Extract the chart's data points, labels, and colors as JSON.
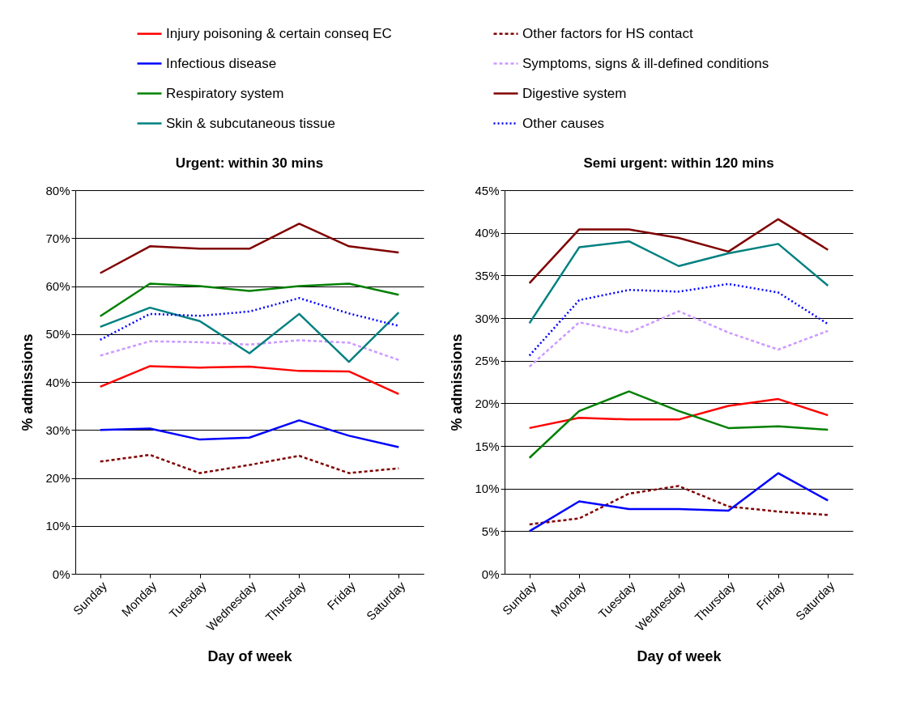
{
  "chart_data": [
    {
      "type": "line",
      "title": "Urgent: within 30 mins",
      "xlabel": "Day of week",
      "ylabel": "% admissions",
      "categories": [
        "Sunday",
        "Monday",
        "Tuesday",
        "Wednesday",
        "Thursday",
        "Friday",
        "Saturday"
      ],
      "ylim": [
        0,
        80
      ],
      "yticks": [
        {
          "value": 0,
          "label": "0%"
        },
        {
          "value": 10,
          "label": "10%"
        },
        {
          "value": 20,
          "label": "20%"
        },
        {
          "value": 30,
          "label": "30%"
        },
        {
          "value": 40,
          "label": "40%"
        },
        {
          "value": 50,
          "label": "50%"
        },
        {
          "value": 60,
          "label": "60%"
        },
        {
          "value": 70,
          "label": "70%"
        },
        {
          "value": 80,
          "label": "80%"
        }
      ],
      "grid": "y",
      "legend": "top",
      "series": [
        {
          "name": "Injury poisoning & certain conseq EC",
          "color": "#ff0000",
          "line_style": "solid",
          "values": [
            39,
            43.3,
            43,
            43.2,
            42.3,
            42.2,
            37.5
          ]
        },
        {
          "name": "Other factors for HS contact",
          "color": "#800000",
          "line_style": "dashed",
          "values": [
            23.4,
            24.8,
            21,
            22.7,
            24.6,
            21,
            22
          ]
        },
        {
          "name": "Infectious disease",
          "color": "#0000ff",
          "line_style": "solid",
          "values": [
            30,
            30.3,
            28,
            28.4,
            32,
            28.8,
            26.4
          ]
        },
        {
          "name": "Symptoms, signs & ill-defined conditions",
          "color": "#cc99ff",
          "line_style": "dashed",
          "values": [
            45.5,
            48.5,
            48.3,
            47.8,
            48.7,
            48.2,
            44.6
          ]
        },
        {
          "name": "Respiratory system",
          "color": "#008000",
          "line_style": "solid",
          "values": [
            53.7,
            60.5,
            60,
            59,
            60,
            60.5,
            58.2
          ]
        },
        {
          "name": "Digestive system",
          "color": "#800000",
          "line_style": "solid",
          "values": [
            62.7,
            68.3,
            67.8,
            67.8,
            73,
            68.3,
            67
          ]
        },
        {
          "name": "Skin & subcutaneous tissue",
          "color": "#008080",
          "line_style": "solid",
          "values": [
            51.5,
            55.5,
            52.7,
            46,
            54.2,
            44.2,
            54.5
          ]
        },
        {
          "name": "Other causes",
          "color": "#0000ff",
          "line_style": "dotted",
          "values": [
            48.8,
            54.2,
            53.8,
            54.7,
            57.5,
            54.3,
            51.7
          ]
        }
      ]
    },
    {
      "type": "line",
      "title": "Semi urgent: within 120 mins",
      "xlabel": "Day of week",
      "ylabel": "% admissions",
      "categories": [
        "Sunday",
        "Monday",
        "Tuesday",
        "Wednesday",
        "Thursday",
        "Friday",
        "Saturday"
      ],
      "ylim": [
        0,
        45
      ],
      "yticks": [
        {
          "value": 0,
          "label": "0%"
        },
        {
          "value": 5,
          "label": "5%"
        },
        {
          "value": 10,
          "label": "10%"
        },
        {
          "value": 15,
          "label": "15%"
        },
        {
          "value": 20,
          "label": "20%"
        },
        {
          "value": 25,
          "label": "25%"
        },
        {
          "value": 30,
          "label": "30%"
        },
        {
          "value": 35,
          "label": "35%"
        },
        {
          "value": 40,
          "label": "40%"
        },
        {
          "value": 45,
          "label": "45%"
        }
      ],
      "grid": "y",
      "series": [
        {
          "color": "#ff0000",
          "line_style": "solid",
          "values": [
            17.1,
            18.3,
            18.1,
            18.1,
            19.7,
            20.5,
            18.6
          ]
        },
        {
          "color": "#800000",
          "line_style": "dashed",
          "values": [
            5.8,
            6.5,
            9.4,
            10.3,
            7.9,
            7.3,
            6.9
          ]
        },
        {
          "color": "#0000ff",
          "line_style": "solid",
          "values": [
            5,
            8.5,
            7.6,
            7.6,
            7.4,
            11.8,
            8.6
          ]
        },
        {
          "color": "#cc99ff",
          "line_style": "dashed",
          "values": [
            24.3,
            29.5,
            28.3,
            30.8,
            28.3,
            26.3,
            28.5
          ]
        },
        {
          "color": "#008000",
          "line_style": "solid",
          "values": [
            13.6,
            19.1,
            21.4,
            19.1,
            17.1,
            17.3,
            16.9
          ]
        },
        {
          "color": "#800000",
          "line_style": "solid",
          "values": [
            34.1,
            40.4,
            40.4,
            39.4,
            37.8,
            41.6,
            38
          ]
        },
        {
          "color": "#008080",
          "line_style": "solid",
          "values": [
            29.4,
            38.3,
            39,
            36.1,
            37.6,
            38.7,
            33.8
          ]
        },
        {
          "color": "#0000ff",
          "line_style": "dotted",
          "values": [
            25.6,
            32.1,
            33.3,
            33.1,
            34,
            33,
            29.3
          ]
        }
      ]
    }
  ]
}
